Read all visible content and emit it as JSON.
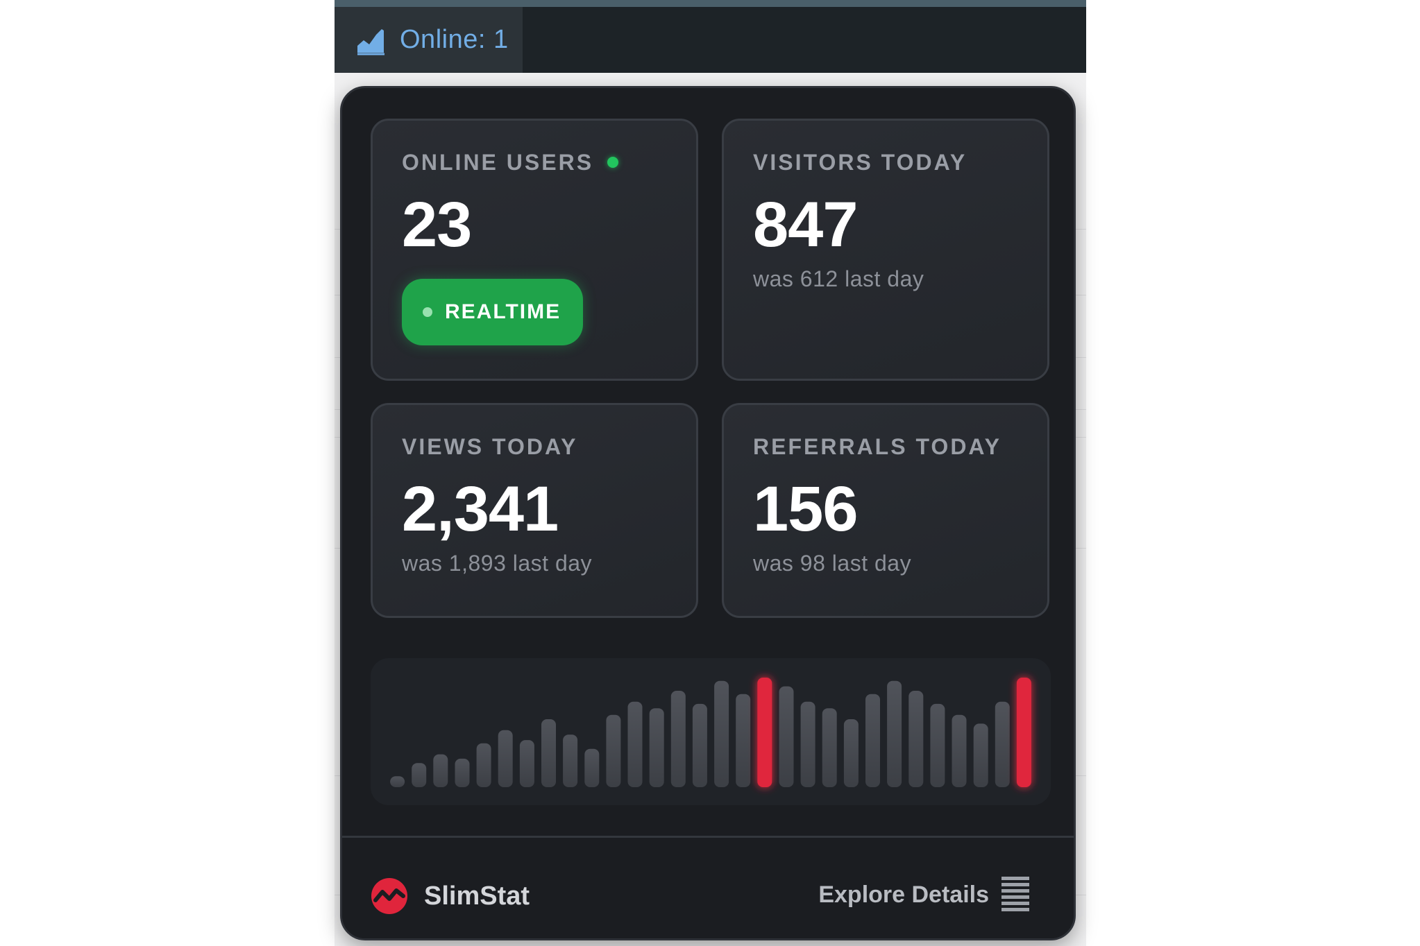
{
  "admin_bar": {
    "online_label": "Online: 1",
    "icon": "chart-area-icon"
  },
  "cards": {
    "online_users": {
      "label": "ONLINE USERS",
      "value": "23",
      "realtime_label": "REALTIME"
    },
    "visitors_today": {
      "label": "VISITORS TODAY",
      "value": "847",
      "sub": "was 612 last day"
    },
    "views_today": {
      "label": "VIEWS TODAY",
      "value": "2,341",
      "sub": "was 1,893 last day"
    },
    "referrals_today": {
      "label": "REFERRALS TODAY",
      "value": "156",
      "sub": "was 98 last day"
    }
  },
  "chart_data": {
    "type": "bar",
    "values": [
      10,
      22,
      30,
      26,
      40,
      52,
      43,
      62,
      48,
      35,
      66,
      78,
      72,
      88,
      76,
      97,
      85,
      100,
      92,
      78,
      72,
      62,
      85,
      97,
      88,
      76,
      66,
      58,
      78,
      100
    ],
    "highlight_indices": [
      17,
      29
    ],
    "colors": {
      "bar": "#4a4d54",
      "highlight": "#e0253c"
    }
  },
  "footer": {
    "brand_name": "SlimStat",
    "explore_label": "Explore Details",
    "explore_icon": "bars-icon"
  },
  "colors": {
    "accent_red": "#e0253c",
    "live_green": "#22c55e",
    "admin_link": "#72aee6"
  }
}
